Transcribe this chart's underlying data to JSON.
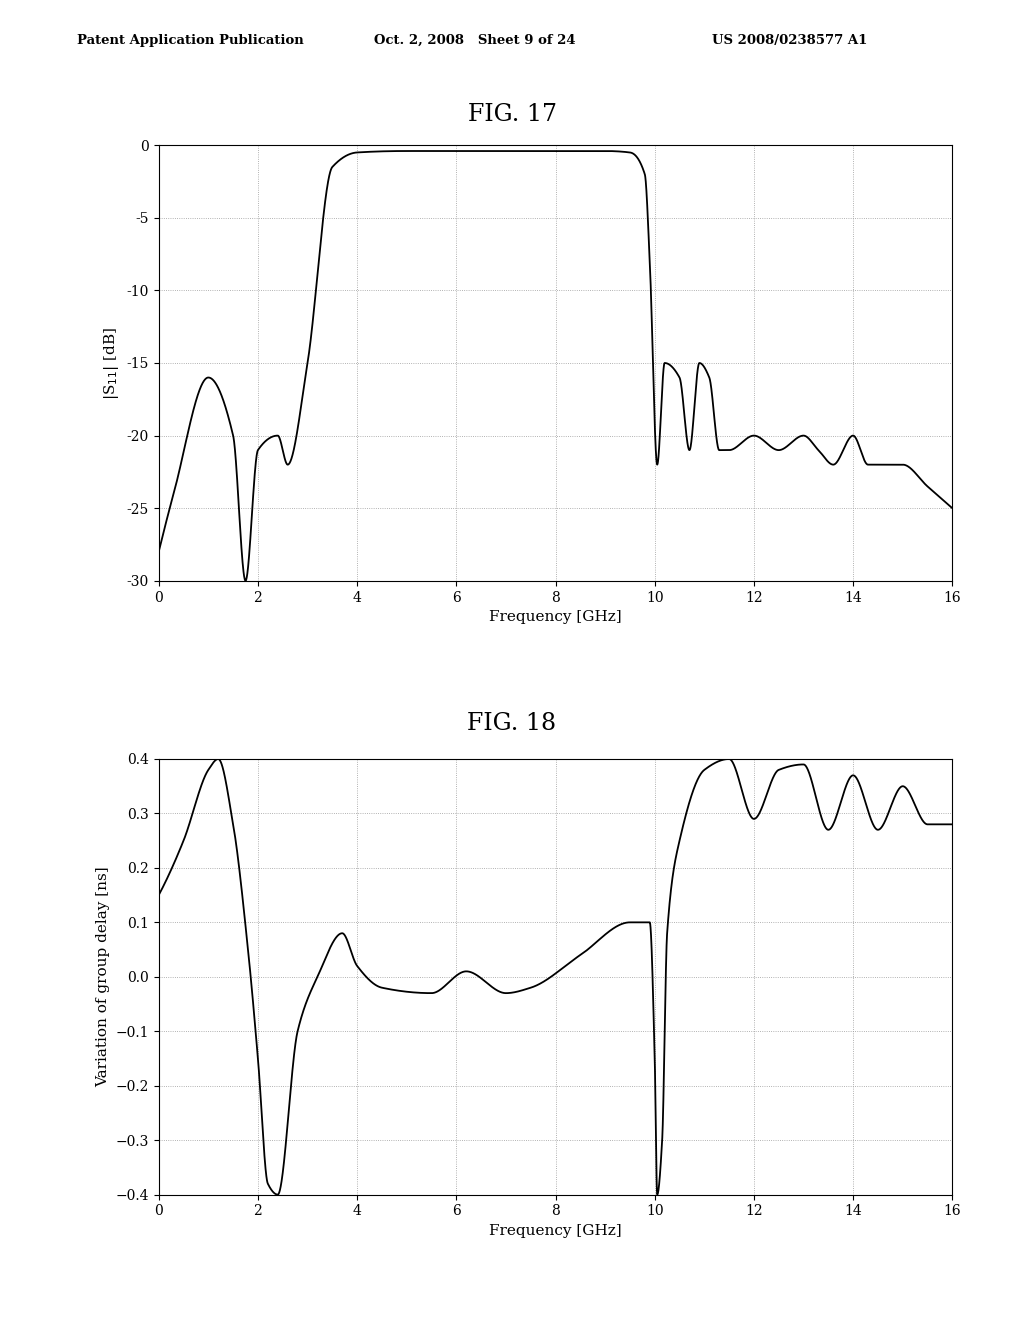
{
  "fig17_title": "FIG. 17",
  "fig18_title": "FIG. 18",
  "header_left": "Patent Application Publication",
  "header_mid": "Oct. 2, 2008   Sheet 9 of 24",
  "header_right": "US 2008/0238577 A1",
  "fig17_ylabel": "|S$_{11}$| [dB]",
  "fig17_xlabel": "Frequency [GHz]",
  "fig17_xlim": [
    0,
    16
  ],
  "fig17_ylim": [
    -30,
    0
  ],
  "fig17_yticks": [
    0,
    -5,
    -10,
    -15,
    -20,
    -25,
    -30
  ],
  "fig17_xticks": [
    0,
    2,
    4,
    6,
    8,
    10,
    12,
    14,
    16
  ],
  "fig18_ylabel": "Variation of group delay [ns]",
  "fig18_xlabel": "Frequency [GHz]",
  "fig18_xlim": [
    0,
    16
  ],
  "fig18_ylim": [
    -0.4,
    0.4
  ],
  "fig18_yticks": [
    -0.4,
    -0.3,
    -0.2,
    -0.1,
    0,
    0.1,
    0.2,
    0.3,
    0.4
  ],
  "fig18_xticks": [
    0,
    2,
    4,
    6,
    8,
    10,
    12,
    14,
    16
  ],
  "line_color": "#000000",
  "bg_color": "#ffffff",
  "grid_color": "#999999"
}
